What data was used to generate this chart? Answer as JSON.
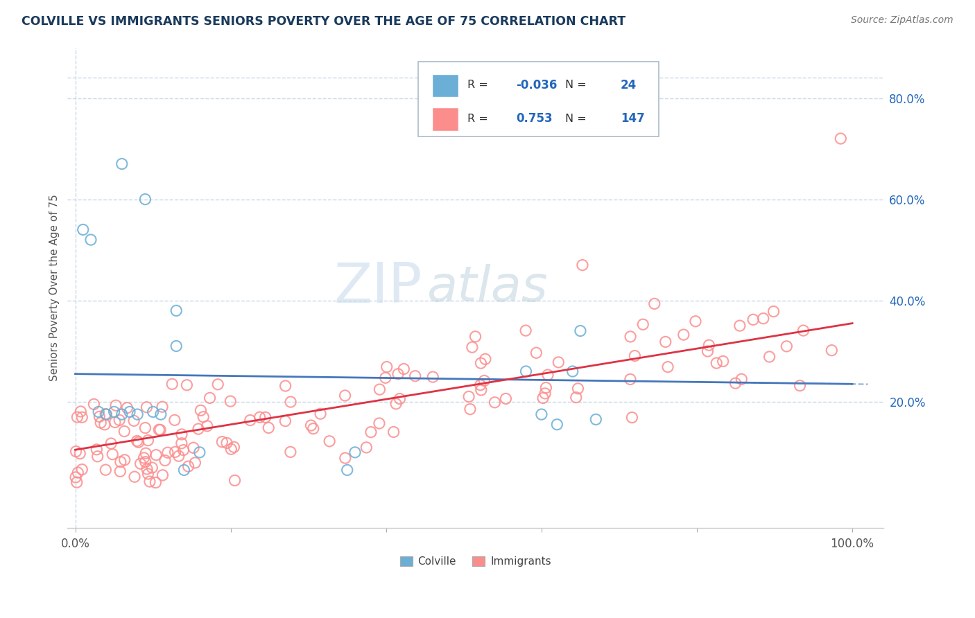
{
  "title": "COLVILLE VS IMMIGRANTS SENIORS POVERTY OVER THE AGE OF 75 CORRELATION CHART",
  "source": "Source: ZipAtlas.com",
  "ylabel": "Seniors Poverty Over the Age of 75",
  "xlim": [
    -0.01,
    1.04
  ],
  "ylim": [
    -0.05,
    0.9
  ],
  "xtick_positions": [
    0.0,
    0.2,
    0.4,
    0.6,
    0.8,
    1.0
  ],
  "xtick_labels": [
    "0.0%",
    "",
    "",
    "",
    "",
    "100.0%"
  ],
  "ytick_positions": [
    0.2,
    0.4,
    0.6,
    0.8
  ],
  "ytick_labels": [
    "20.0%",
    "40.0%",
    "60.0%",
    "80.0%"
  ],
  "colville_color": "#6baed6",
  "immigrants_color": "#fc8d8d",
  "colville_line_color": "#4477bb",
  "immigrants_line_color": "#dd3344",
  "colville_R": -0.036,
  "colville_N": 24,
  "immigrants_R": 0.753,
  "immigrants_N": 147,
  "watermark_zip": "ZIP",
  "watermark_atlas": "atlas",
  "background_color": "#ffffff",
  "grid_color": "#c8d8e8",
  "legend_box_color": "#aaccee",
  "legend_r_color": "#2266bb",
  "legend_n_color": "#2266bb",
  "title_color": "#1a3a5c",
  "source_color": "#777777",
  "axis_label_color": "#555555",
  "colville_x": [
    0.02,
    0.06,
    0.01,
    0.09,
    0.13,
    0.13,
    0.14,
    0.16,
    0.35,
    0.36,
    0.03,
    0.04,
    0.05,
    0.06,
    0.07,
    0.08,
    0.1,
    0.11,
    0.58,
    0.6,
    0.62,
    0.64,
    0.65,
    0.67
  ],
  "colville_y": [
    0.52,
    0.67,
    0.54,
    0.6,
    0.38,
    0.31,
    0.065,
    0.1,
    0.065,
    0.1,
    0.18,
    0.175,
    0.18,
    0.175,
    0.18,
    0.175,
    0.18,
    0.175,
    0.26,
    0.175,
    0.155,
    0.26,
    0.34,
    0.165
  ],
  "blue_line_x": [
    0.0,
    1.0
  ],
  "blue_line_y": [
    0.255,
    0.235
  ],
  "pink_line_x": [
    0.0,
    1.0
  ],
  "pink_line_y": [
    0.105,
    0.355
  ]
}
